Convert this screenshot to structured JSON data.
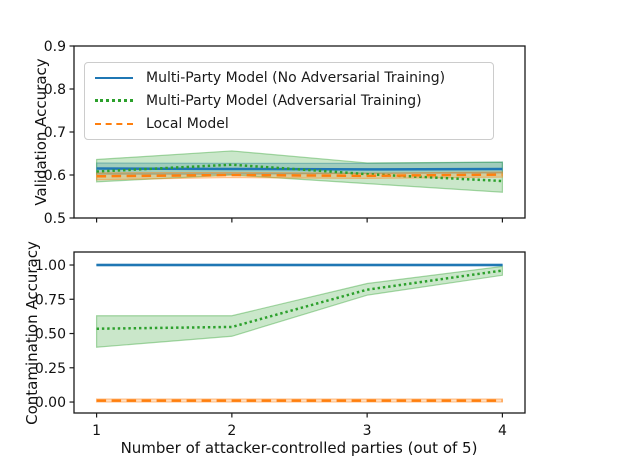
{
  "legend": [
    {
      "label": "Multi-Party Model (No Adversarial Training)",
      "color": "#1f77b4",
      "style": "solid"
    },
    {
      "label": "Multi-Party Model (Adversarial Training)",
      "color": "#2ca02c",
      "style": "dotted"
    },
    {
      "label": "Local Model",
      "color": "#ff7f0e",
      "style": "dashed"
    }
  ],
  "chart_data": [
    {
      "type": "line",
      "ylabel": "Validation Accuracy",
      "x": [
        1,
        2,
        3,
        4
      ],
      "xlim": [
        0.833,
        4.167
      ],
      "ylim": [
        0.5,
        0.9
      ],
      "grid": false,
      "legend_position": "upper left",
      "xticks": {
        "values": [
          1,
          2,
          3,
          4
        ],
        "labels": []
      },
      "yticks": {
        "values": [
          0.5,
          0.6,
          0.7,
          0.8,
          0.9
        ],
        "labels": [
          "0.5",
          "0.6",
          "0.7",
          "0.8",
          "0.9"
        ]
      },
      "series": [
        {
          "name": "Multi-Party Model (No Adversarial Training)",
          "color": "#1f77b4",
          "style": "solid",
          "values": [
            0.615,
            0.614,
            0.613,
            0.614
          ],
          "band_lower": [
            0.602,
            0.602,
            0.604,
            0.605
          ],
          "band_upper": [
            0.628,
            0.627,
            0.627,
            0.63
          ]
        },
        {
          "name": "Multi-Party Model (Adversarial Training)",
          "color": "#2ca02c",
          "style": "dotted",
          "values": [
            0.608,
            0.624,
            0.602,
            0.586
          ],
          "band_lower": [
            0.584,
            0.6,
            0.58,
            0.56
          ],
          "band_upper": [
            0.636,
            0.656,
            0.628,
            0.63
          ]
        },
        {
          "name": "Local Model",
          "color": "#ff7f0e",
          "style": "dashed",
          "values": [
            0.597,
            0.6,
            0.598,
            0.601
          ],
          "band_lower": [
            0.589,
            0.594,
            0.592,
            0.595
          ],
          "band_upper": [
            0.605,
            0.606,
            0.604,
            0.607
          ]
        }
      ]
    },
    {
      "type": "line",
      "ylabel": "Contamination Accuracy",
      "xlabel": "Number of attacker-controlled parties (out of 5)",
      "x": [
        1,
        2,
        3,
        4
      ],
      "xlim": [
        0.833,
        4.167
      ],
      "ylim": [
        -0.08,
        1.095
      ],
      "grid": false,
      "xticks": {
        "values": [
          1,
          2,
          3,
          4
        ],
        "labels": [
          "1",
          "2",
          "3",
          "4"
        ]
      },
      "yticks": {
        "values": [
          0.0,
          0.25,
          0.5,
          0.75,
          1.0
        ],
        "labels": [
          "0.00",
          "0.25",
          "0.50",
          "0.75",
          "1.00"
        ]
      },
      "series": [
        {
          "name": "Multi-Party Model (No Adversarial Training)",
          "color": "#1f77b4",
          "style": "solid",
          "values": [
            1.0,
            1.0,
            1.0,
            1.0
          ],
          "band_lower": [
            0.995,
            0.995,
            0.995,
            0.995
          ],
          "band_upper": [
            1.005,
            1.005,
            1.005,
            1.005
          ]
        },
        {
          "name": "Multi-Party Model (Adversarial Training)",
          "color": "#2ca02c",
          "style": "dotted",
          "values": [
            0.535,
            0.548,
            0.82,
            0.96
          ],
          "band_lower": [
            0.4,
            0.48,
            0.78,
            0.925
          ],
          "band_upper": [
            0.63,
            0.63,
            0.865,
            0.99
          ]
        },
        {
          "name": "Local Model",
          "color": "#ff7f0e",
          "style": "dashed",
          "values": [
            0.01,
            0.01,
            0.01,
            0.01
          ],
          "band_lower": [
            0.0,
            0.0,
            0.0,
            0.0
          ],
          "band_upper": [
            0.022,
            0.022,
            0.022,
            0.022
          ]
        }
      ]
    }
  ]
}
